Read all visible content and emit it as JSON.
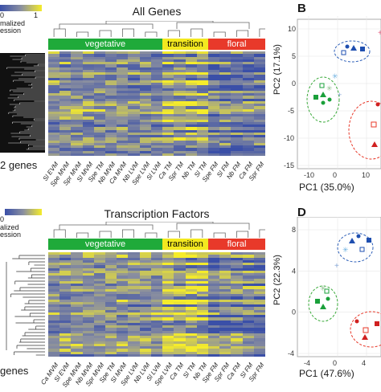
{
  "legend_top": {
    "min": "0",
    "max": "1",
    "label_line1": "malized",
    "label_line2": "ession"
  },
  "legend_bottom": {
    "min": "0",
    "label_line1": "alized",
    "label_line2": "ession"
  },
  "genes_top": "2 genes",
  "genes_bottom": "genes",
  "panel_top": {
    "title": "All Genes",
    "phases": {
      "vegetative": "vegetative",
      "transition": "transition",
      "floral": "floral"
    },
    "columns": [
      "Sl EVM",
      "Spe MVM",
      "Spr MVM",
      "Sl MVM",
      "Spe TM",
      "Nb MVM",
      "Ca MVM",
      "Nb LVM",
      "Spe LVM",
      "Sl LVM",
      "Ca TM",
      "Spr TM",
      "Nb TM",
      "Sl TM",
      "Spe FM",
      "Sl FM",
      "Nb FM",
      "Ca FM",
      "Spr FM"
    ]
  },
  "panel_bottom": {
    "title": "Transcription Factors",
    "phases": {
      "vegetative": "vegetative",
      "transition": "transition",
      "floral": "floral"
    },
    "columns": [
      "Ca MVM",
      "Sl EVM",
      "Spe MVM",
      "Nb MVM",
      "Spr MVM",
      "Spe TM",
      "Sl MVM",
      "Spe LVM",
      "Nb LVM",
      "Sl LVM",
      "Spe LVM",
      "Ca TM",
      "Sl TM",
      "Nb TM",
      "Spe FM",
      "Spr FM",
      "Ca FM",
      "Sl FM",
      "Spr FM"
    ]
  },
  "pca_B": {
    "letter": "B",
    "xlabel": "PC1 (35.0%)",
    "ylabel": "PC2 (17.1%)",
    "xticks": [
      "-10",
      "0",
      "10"
    ],
    "yticks": [
      "10",
      "5",
      "0",
      "-5",
      "-10",
      "-15"
    ]
  },
  "pca_D": {
    "letter": "D",
    "xlabel": "PC1 (47.6%)",
    "ylabel": "PC2 (22.3%)",
    "xticks": [
      "-4",
      "0",
      "4"
    ],
    "yticks": [
      "8",
      "4",
      "0",
      "-4"
    ]
  },
  "colors": {
    "vegetative": "#1faa3a",
    "transition": "#f3e81f",
    "floral": "#e8392a",
    "low": "#3a4fa8",
    "high": "#f5ec2b"
  }
}
